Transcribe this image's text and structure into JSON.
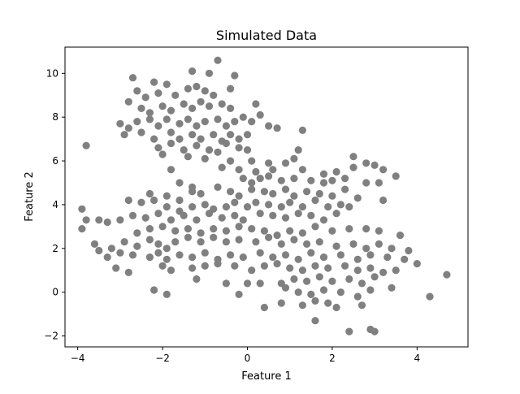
{
  "chart_data": {
    "type": "scatter",
    "title": "Simulated Data",
    "xlabel": "Feature 1",
    "ylabel": "Feature 2",
    "xlim": [
      -4.3,
      5.2
    ],
    "ylim": [
      -2.5,
      11.2
    ],
    "xticks": [
      -4,
      -2,
      0,
      2,
      4
    ],
    "xtick_labels": [
      "−4",
      "−2",
      "0",
      "2",
      "4"
    ],
    "yticks": [
      -2,
      0,
      2,
      4,
      6,
      8,
      10
    ],
    "ytick_labels": [
      "−2",
      "0",
      "2",
      "4",
      "6",
      "8",
      "10"
    ],
    "grid": false,
    "legend": "none",
    "marker_color": "#808080",
    "points": [
      [
        -2.7,
        9.8
      ],
      [
        -2.2,
        9.6
      ],
      [
        -1.9,
        9.5
      ],
      [
        -1.3,
        10.1
      ],
      [
        -0.9,
        10.0
      ],
      [
        -0.7,
        10.6
      ],
      [
        -0.3,
        9.9
      ],
      [
        -2.6,
        9.2
      ],
      [
        -2.4,
        8.9
      ],
      [
        -2.1,
        9.1
      ],
      [
        -1.7,
        9.0
      ],
      [
        -1.4,
        9.3
      ],
      [
        -1.2,
        9.4
      ],
      [
        -1.0,
        9.2
      ],
      [
        -0.8,
        9.0
      ],
      [
        -0.4,
        9.3
      ],
      [
        -2.8,
        8.7
      ],
      [
        -2.5,
        8.4
      ],
      [
        -2.3,
        8.2
      ],
      [
        -2.0,
        8.5
      ],
      [
        -1.8,
        8.3
      ],
      [
        -1.5,
        8.6
      ],
      [
        -1.3,
        8.4
      ],
      [
        -1.1,
        8.7
      ],
      [
        -0.9,
        8.5
      ],
      [
        -0.6,
        8.6
      ],
      [
        -0.4,
        8.4
      ],
      [
        0.2,
        8.6
      ],
      [
        -3.0,
        7.7
      ],
      [
        -2.8,
        7.5
      ],
      [
        -2.6,
        7.8
      ],
      [
        -2.3,
        7.9
      ],
      [
        -2.1,
        7.6
      ],
      [
        -1.9,
        7.9
      ],
      [
        -1.6,
        7.7
      ],
      [
        -1.4,
        7.9
      ],
      [
        -1.2,
        7.6
      ],
      [
        -1.0,
        7.8
      ],
      [
        -0.7,
        7.9
      ],
      [
        -0.5,
        7.6
      ],
      [
        -0.3,
        7.8
      ],
      [
        -0.1,
        8.0
      ],
      [
        0.1,
        7.8
      ],
      [
        0.3,
        8.1
      ],
      [
        0.5,
        7.6
      ],
      [
        0.7,
        7.5
      ],
      [
        1.3,
        7.4
      ],
      [
        -2.9,
        7.2
      ],
      [
        -2.5,
        7.3
      ],
      [
        -2.2,
        7.0
      ],
      [
        -1.8,
        7.3
      ],
      [
        -1.6,
        7.0
      ],
      [
        -1.3,
        7.2
      ],
      [
        -1.1,
        7.0
      ],
      [
        -0.8,
        7.2
      ],
      [
        -0.6,
        6.9
      ],
      [
        -0.4,
        7.2
      ],
      [
        -0.2,
        7.0
      ],
      [
        0.0,
        7.2
      ],
      [
        -3.8,
        6.7
      ],
      [
        -2.1,
        6.6
      ],
      [
        -1.8,
        6.8
      ],
      [
        -1.5,
        6.5
      ],
      [
        -1.2,
        6.7
      ],
      [
        -0.9,
        6.5
      ],
      [
        -0.7,
        6.4
      ],
      [
        -0.5,
        6.8
      ],
      [
        -0.2,
        6.6
      ],
      [
        0.0,
        6.5
      ],
      [
        -2.0,
        6.3
      ],
      [
        -1.4,
        6.2
      ],
      [
        -1.0,
        6.1
      ],
      [
        -0.4,
        6.0
      ],
      [
        0.1,
        6.0
      ],
      [
        0.5,
        5.9
      ],
      [
        0.9,
        5.9
      ],
      [
        1.1,
        6.1
      ],
      [
        1.2,
        6.5
      ],
      [
        -1.8,
        5.6
      ],
      [
        -0.6,
        5.7
      ],
      [
        -0.2,
        5.6
      ],
      [
        0.2,
        5.5
      ],
      [
        0.6,
        5.6
      ],
      [
        1.3,
        5.6
      ],
      [
        1.8,
        5.4
      ],
      [
        2.1,
        5.5
      ],
      [
        2.5,
        5.7
      ],
      [
        2.5,
        6.2
      ],
      [
        2.8,
        5.9
      ],
      [
        3.0,
        5.8
      ],
      [
        3.2,
        5.6
      ],
      [
        3.5,
        5.3
      ],
      [
        -1.6,
        5.0
      ],
      [
        -1.3,
        4.8
      ],
      [
        -0.1,
        5.2
      ],
      [
        0.1,
        5.0
      ],
      [
        0.3,
        5.2
      ],
      [
        0.5,
        5.3
      ],
      [
        0.8,
        5.1
      ],
      [
        1.1,
        5.2
      ],
      [
        1.5,
        5.1
      ],
      [
        1.8,
        5.0
      ],
      [
        2.0,
        5.1
      ],
      [
        2.3,
        5.2
      ],
      [
        2.8,
        5.0
      ],
      [
        3.1,
        5.0
      ],
      [
        -2.3,
        4.5
      ],
      [
        -1.9,
        4.4
      ],
      [
        -1.6,
        4.2
      ],
      [
        -1.3,
        4.6
      ],
      [
        -1.1,
        4.5
      ],
      [
        -0.7,
        4.8
      ],
      [
        -0.4,
        4.6
      ],
      [
        -0.2,
        4.4
      ],
      [
        0.1,
        4.7
      ],
      [
        0.4,
        4.6
      ],
      [
        0.6,
        4.5
      ],
      [
        0.9,
        4.7
      ],
      [
        1.1,
        4.4
      ],
      [
        1.4,
        4.6
      ],
      [
        1.7,
        4.5
      ],
      [
        2.0,
        4.4
      ],
      [
        2.3,
        4.7
      ],
      [
        2.6,
        4.3
      ],
      [
        -3.9,
        3.8
      ],
      [
        -2.8,
        4.2
      ],
      [
        -2.5,
        4.1
      ],
      [
        -2.2,
        4.2
      ],
      [
        -1.9,
        3.9
      ],
      [
        -1.6,
        3.7
      ],
      [
        -1.3,
        3.9
      ],
      [
        -1.0,
        4.0
      ],
      [
        -0.8,
        3.8
      ],
      [
        -0.5,
        3.9
      ],
      [
        -0.3,
        4.1
      ],
      [
        0.0,
        3.9
      ],
      [
        0.2,
        4.1
      ],
      [
        0.5,
        4.0
      ],
      [
        0.8,
        3.9
      ],
      [
        1.0,
        4.1
      ],
      [
        1.3,
        3.9
      ],
      [
        1.6,
        4.2
      ],
      [
        1.9,
        3.9
      ],
      [
        2.2,
        4.0
      ],
      [
        2.4,
        3.9
      ],
      [
        3.2,
        4.2
      ],
      [
        -3.8,
        3.3
      ],
      [
        -3.5,
        3.3
      ],
      [
        -3.3,
        3.2
      ],
      [
        -3.0,
        3.3
      ],
      [
        -2.7,
        3.5
      ],
      [
        -2.4,
        3.4
      ],
      [
        -2.1,
        3.6
      ],
      [
        -1.8,
        3.3
      ],
      [
        -1.5,
        3.5
      ],
      [
        -1.2,
        3.3
      ],
      [
        -0.9,
        3.6
      ],
      [
        -0.6,
        3.4
      ],
      [
        -0.3,
        3.5
      ],
      [
        -0.1,
        3.3
      ],
      [
        0.3,
        3.6
      ],
      [
        0.6,
        3.5
      ],
      [
        0.9,
        3.4
      ],
      [
        1.2,
        3.6
      ],
      [
        1.5,
        3.5
      ],
      [
        1.8,
        3.3
      ],
      [
        2.1,
        3.6
      ],
      [
        -3.9,
        2.9
      ],
      [
        -2.6,
        2.7
      ],
      [
        -2.3,
        2.9
      ],
      [
        -2.0,
        3.0
      ],
      [
        -1.7,
        2.8
      ],
      [
        -1.4,
        2.9
      ],
      [
        -1.1,
        2.7
      ],
      [
        -0.8,
        2.9
      ],
      [
        -0.5,
        2.8
      ],
      [
        -0.2,
        3.0
      ],
      [
        0.1,
        2.9
      ],
      [
        0.4,
        2.8
      ],
      [
        0.7,
        2.6
      ],
      [
        1.0,
        2.8
      ],
      [
        1.3,
        2.7
      ],
      [
        1.6,
        3.0
      ],
      [
        2.0,
        2.8
      ],
      [
        2.4,
        2.9
      ],
      [
        2.8,
        2.9
      ],
      [
        3.1,
        2.8
      ],
      [
        3.6,
        2.6
      ],
      [
        -3.6,
        2.2
      ],
      [
        -3.2,
        2.0
      ],
      [
        -2.9,
        2.3
      ],
      [
        -2.6,
        2.1
      ],
      [
        -2.3,
        2.4
      ],
      [
        -2.1,
        2.2
      ],
      [
        -1.9,
        2.0
      ],
      [
        -1.7,
        2.3
      ],
      [
        -1.4,
        2.5
      ],
      [
        -1.1,
        2.3
      ],
      [
        -0.8,
        2.5
      ],
      [
        -0.5,
        2.3
      ],
      [
        -0.2,
        2.4
      ],
      [
        0.2,
        2.3
      ],
      [
        0.5,
        2.5
      ],
      [
        0.8,
        2.2
      ],
      [
        1.1,
        2.4
      ],
      [
        1.4,
        2.2
      ],
      [
        1.7,
        2.3
      ],
      [
        2.1,
        2.1
      ],
      [
        2.5,
        2.2
      ],
      [
        2.8,
        2.0
      ],
      [
        3.1,
        2.2
      ],
      [
        3.4,
        2.0
      ],
      [
        3.8,
        1.9
      ],
      [
        -3.5,
        1.9
      ],
      [
        -3.3,
        1.6
      ],
      [
        -3.0,
        1.8
      ],
      [
        -2.7,
        1.7
      ],
      [
        -2.3,
        1.6
      ],
      [
        -2.1,
        1.8
      ],
      [
        -1.9,
        1.5
      ],
      [
        -1.6,
        1.7
      ],
      [
        -1.3,
        1.6
      ],
      [
        -1.0,
        1.8
      ],
      [
        -0.7,
        1.5
      ],
      [
        -0.4,
        1.7
      ],
      [
        -0.1,
        1.6
      ],
      [
        0.3,
        1.8
      ],
      [
        0.6,
        1.6
      ],
      [
        0.9,
        1.7
      ],
      [
        1.2,
        1.5
      ],
      [
        1.5,
        1.8
      ],
      [
        1.8,
        1.6
      ],
      [
        2.2,
        1.7
      ],
      [
        2.6,
        1.5
      ],
      [
        2.9,
        1.7
      ],
      [
        3.3,
        1.6
      ],
      [
        3.7,
        1.5
      ],
      [
        4.0,
        1.3
      ],
      [
        -3.1,
        1.1
      ],
      [
        -2.8,
        0.9
      ],
      [
        -2.0,
        1.2
      ],
      [
        -1.8,
        1.0
      ],
      [
        -1.3,
        1.1
      ],
      [
        -1.0,
        1.2
      ],
      [
        -0.7,
        1.3
      ],
      [
        -0.3,
        1.2
      ],
      [
        0.1,
        1.0
      ],
      [
        0.4,
        1.2
      ],
      [
        0.7,
        1.3
      ],
      [
        1.0,
        1.1
      ],
      [
        1.3,
        1.0
      ],
      [
        1.6,
        1.2
      ],
      [
        1.9,
        1.1
      ],
      [
        2.3,
        1.2
      ],
      [
        2.6,
        1.0
      ],
      [
        2.9,
        1.1
      ],
      [
        3.2,
        0.9
      ],
      [
        3.5,
        1.0
      ],
      [
        -1.2,
        0.6
      ],
      [
        -0.5,
        0.4
      ],
      [
        0.0,
        0.4
      ],
      [
        0.3,
        0.4
      ],
      [
        0.8,
        0.4
      ],
      [
        1.1,
        0.6
      ],
      [
        1.4,
        0.5
      ],
      [
        1.7,
        0.7
      ],
      [
        2.0,
        0.5
      ],
      [
        2.4,
        0.6
      ],
      [
        2.7,
        0.4
      ],
      [
        3.0,
        0.7
      ],
      [
        4.7,
        0.8
      ],
      [
        -2.2,
        0.1
      ],
      [
        -1.9,
        -0.1
      ],
      [
        -0.2,
        -0.1
      ],
      [
        0.9,
        0.2
      ],
      [
        1.2,
        0.0
      ],
      [
        1.5,
        -0.1
      ],
      [
        1.8,
        0.1
      ],
      [
        2.2,
        0.0
      ],
      [
        2.6,
        -0.2
      ],
      [
        2.9,
        0.1
      ],
      [
        3.4,
        0.2
      ],
      [
        4.3,
        -0.2
      ],
      [
        0.4,
        -0.7
      ],
      [
        0.8,
        -0.5
      ],
      [
        1.3,
        -0.6
      ],
      [
        1.6,
        -0.4
      ],
      [
        1.9,
        -0.5
      ],
      [
        2.1,
        -0.7
      ],
      [
        2.7,
        -0.6
      ],
      [
        1.6,
        -1.3
      ],
      [
        2.4,
        -1.8
      ],
      [
        2.9,
        -1.7
      ],
      [
        3.0,
        -1.8
      ]
    ]
  }
}
